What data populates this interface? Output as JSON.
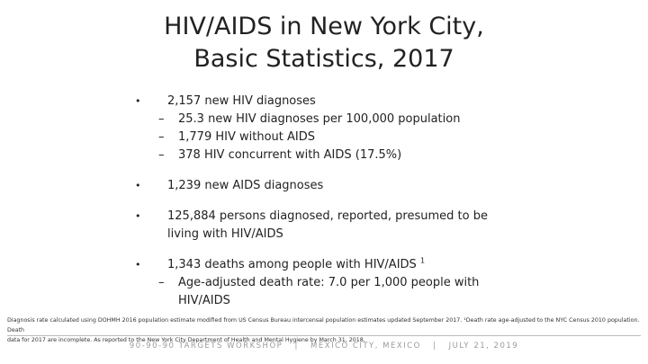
{
  "slide": {
    "title_line1": "HIV/AIDS in New York City,",
    "title_line2": "Basic Statistics, 2017",
    "bullets": [
      {
        "text": "2,157 new HIV diagnoses",
        "sub": [
          "25.3 new HIV diagnoses per 100,000 population",
          "1,779 HIV without AIDS",
          "378 HIV concurrent with AIDS (17.5%)"
        ]
      },
      {
        "text": "1,239 new AIDS diagnoses"
      },
      {
        "text_line1": "125,884 persons diagnosed, reported, presumed to be",
        "text_line2": "living with HIV/AIDS"
      },
      {
        "text": "1,343 deaths among people with HIV/AIDS",
        "sup": "1",
        "sub_line1": "Age-adjusted death rate: 7.0 per 1,000 people with",
        "sub_line2": "HIV/AIDS"
      }
    ],
    "bullet_symbol": "•",
    "dash_symbol": "–",
    "footnote_line1": "Diagnosis rate calculated using DOHMH 2016 population estimate modified from US Census Bureau intercensal population estimates updated September 2017.  ¹Death rate age-adjusted to the NYC Census 2010 population. Death",
    "footnote_line2": "data for 2017 are incomplete. As reported to the New York City Department of Health and Mental Hygiene by March 31, 2018.",
    "workshop": {
      "part1": "90-90-90 TARGETS WORKSHOP",
      "sep": "|",
      "part2": "MEXICO CITY, MEXICO",
      "part3": "JULY 21, 2019"
    }
  }
}
